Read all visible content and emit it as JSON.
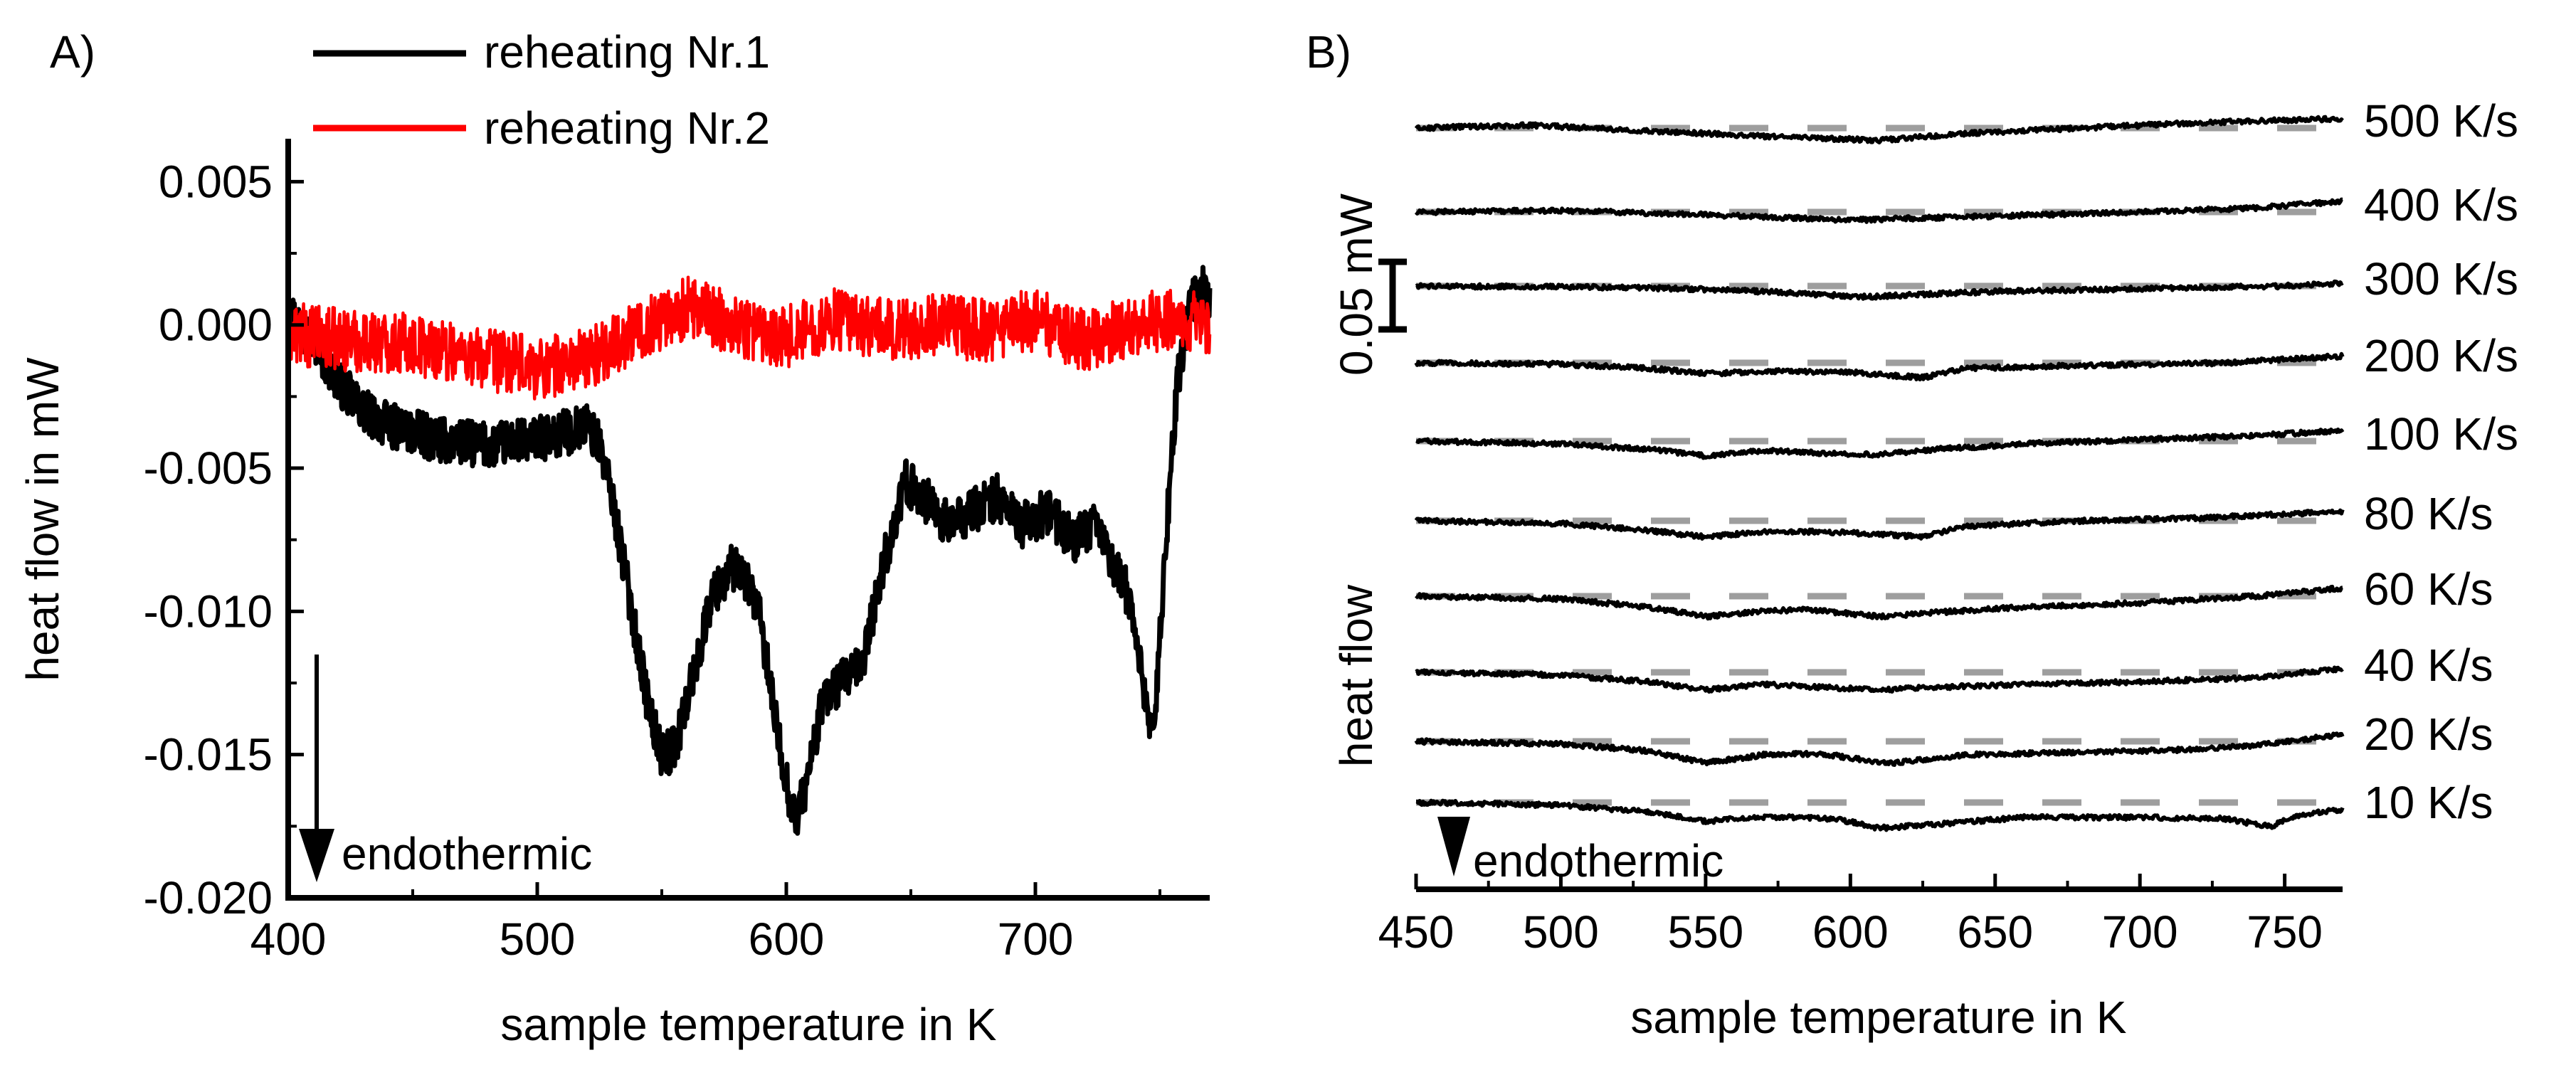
{
  "chart_data": [
    {
      "panel_label": "A)",
      "type": "line",
      "xlabel": "sample temperature in K",
      "ylabel": "heat flow in mW",
      "xlim": [
        400,
        770
      ],
      "ylim": [
        -0.02,
        0.0065
      ],
      "x_ticks": [
        400,
        500,
        600,
        700
      ],
      "y_ticks": [
        0.005,
        0.0,
        -0.005,
        -0.01,
        -0.015,
        -0.02
      ],
      "y_tick_labels": [
        "0.005",
        "0.000",
        "-0.005",
        "-0.010",
        "-0.015",
        "-0.020"
      ],
      "annotation": "endothermic",
      "series": [
        {
          "name": "reheating Nr.1",
          "color": "#000000",
          "noise": 0.0008,
          "points": [
            [
              400,
              0.0005
            ],
            [
              405,
              0.0
            ],
            [
              410,
              -0.0005
            ],
            [
              420,
              -0.002
            ],
            [
              430,
              -0.003
            ],
            [
              440,
              -0.0035
            ],
            [
              460,
              -0.004
            ],
            [
              480,
              -0.0042
            ],
            [
              500,
              -0.004
            ],
            [
              510,
              -0.0038
            ],
            [
              520,
              -0.0035
            ],
            [
              525,
              -0.0042
            ],
            [
              530,
              -0.006
            ],
            [
              535,
              -0.0085
            ],
            [
              540,
              -0.011
            ],
            [
              545,
              -0.0135
            ],
            [
              550,
              -0.015
            ],
            [
              555,
              -0.0148
            ],
            [
              562,
              -0.0125
            ],
            [
              570,
              -0.0095
            ],
            [
              578,
              -0.0085
            ],
            [
              585,
              -0.009
            ],
            [
              590,
              -0.0105
            ],
            [
              595,
              -0.0135
            ],
            [
              600,
              -0.016
            ],
            [
              604,
              -0.0173
            ],
            [
              608,
              -0.016
            ],
            [
              615,
              -0.013
            ],
            [
              622,
              -0.0125
            ],
            [
              630,
              -0.012
            ],
            [
              640,
              -0.008
            ],
            [
              648,
              -0.0055
            ],
            [
              655,
              -0.006
            ],
            [
              665,
              -0.007
            ],
            [
              675,
              -0.0065
            ],
            [
              685,
              -0.006
            ],
            [
              695,
              -0.007
            ],
            [
              705,
              -0.0065
            ],
            [
              715,
              -0.0075
            ],
            [
              725,
              -0.007
            ],
            [
              732,
              -0.0085
            ],
            [
              738,
              -0.0095
            ],
            [
              745,
              -0.0135
            ],
            [
              748,
              -0.014
            ],
            [
              752,
              -0.008
            ],
            [
              757,
              -0.002
            ],
            [
              762,
              0.0005
            ],
            [
              766,
              0.0015
            ],
            [
              770,
              0.001
            ]
          ]
        },
        {
          "name": "reheating Nr.2",
          "color": "#ff0000",
          "noise": 0.0011,
          "points": [
            [
              400,
              -0.0003
            ],
            [
              420,
              -0.0005
            ],
            [
              440,
              -0.0006
            ],
            [
              460,
              -0.0008
            ],
            [
              480,
              -0.0012
            ],
            [
              500,
              -0.0015
            ],
            [
              520,
              -0.0012
            ],
            [
              540,
              -0.0002
            ],
            [
              560,
              0.0006
            ],
            [
              580,
              0.0
            ],
            [
              600,
              -0.0004
            ],
            [
              620,
              0.0002
            ],
            [
              640,
              -0.0002
            ],
            [
              660,
              0.0
            ],
            [
              680,
              -0.0002
            ],
            [
              700,
              0.0002
            ],
            [
              720,
              -0.0006
            ],
            [
              740,
              0.0
            ],
            [
              760,
              0.0003
            ],
            [
              770,
              -0.0003
            ]
          ]
        }
      ]
    },
    {
      "panel_label": "B)",
      "type": "line",
      "xlabel": "sample temperature in K",
      "ylabel": "heat flow",
      "xlim": [
        450,
        770
      ],
      "x_ticks": [
        450,
        500,
        550,
        600,
        650,
        700,
        750
      ],
      "scale_bar_label": "0.05 mW",
      "scale_bar_mW": 0.05,
      "annotation": "endothermic",
      "baseline_style": "dashed grey",
      "series": [
        {
          "name": "500 K/s",
          "color": "#000000",
          "points": [
            [
              450,
              0
            ],
            [
              490,
              0.002
            ],
            [
              530,
              -0.002
            ],
            [
              580,
              -0.007
            ],
            [
              610,
              -0.009
            ],
            [
              640,
              -0.004
            ],
            [
              680,
              0.0
            ],
            [
              720,
              0.004
            ],
            [
              770,
              0.007
            ]
          ]
        },
        {
          "name": "400 K/s",
          "color": "#000000",
          "points": [
            [
              450,
              0
            ],
            [
              500,
              0.001
            ],
            [
              550,
              -0.002
            ],
            [
              600,
              -0.006
            ],
            [
              650,
              -0.003
            ],
            [
              700,
              0.0
            ],
            [
              740,
              0.003
            ],
            [
              770,
              0.008
            ]
          ]
        },
        {
          "name": "300 K/s",
          "color": "#000000",
          "points": [
            [
              450,
              0
            ],
            [
              520,
              -0.001
            ],
            [
              560,
              -0.003
            ],
            [
              605,
              -0.008
            ],
            [
              650,
              -0.004
            ],
            [
              700,
              -0.002
            ],
            [
              750,
              0.0
            ],
            [
              770,
              0.002
            ]
          ]
        },
        {
          "name": "200 K/s",
          "color": "#000000",
          "points": [
            [
              450,
              0
            ],
            [
              500,
              -0.001
            ],
            [
              530,
              -0.004
            ],
            [
              550,
              -0.008
            ],
            [
              575,
              -0.006
            ],
            [
              600,
              -0.007
            ],
            [
              625,
              -0.011
            ],
            [
              640,
              -0.004
            ],
            [
              680,
              -0.002
            ],
            [
              730,
              0.0
            ],
            [
              770,
              0.005
            ]
          ]
        },
        {
          "name": "100 K/s",
          "color": "#000000",
          "points": [
            [
              450,
              0
            ],
            [
              500,
              -0.002
            ],
            [
              530,
              -0.006
            ],
            [
              550,
              -0.011
            ],
            [
              570,
              -0.007
            ],
            [
              590,
              -0.009
            ],
            [
              610,
              -0.01
            ],
            [
              630,
              -0.006
            ],
            [
              660,
              -0.002
            ],
            [
              700,
              0.001
            ],
            [
              740,
              0.004
            ],
            [
              770,
              0.008
            ]
          ]
        },
        {
          "name": "80 K/s",
          "color": "#000000",
          "points": [
            [
              450,
              0
            ],
            [
              500,
              -0.002
            ],
            [
              530,
              -0.007
            ],
            [
              550,
              -0.012
            ],
            [
              570,
              -0.008
            ],
            [
              590,
              -0.008
            ],
            [
              610,
              -0.01
            ],
            [
              625,
              -0.012
            ],
            [
              640,
              -0.004
            ],
            [
              680,
              0.0
            ],
            [
              720,
              0.002
            ],
            [
              770,
              0.007
            ]
          ]
        },
        {
          "name": "60 K/s",
          "color": "#000000",
          "points": [
            [
              450,
              0
            ],
            [
              500,
              -0.002
            ],
            [
              530,
              -0.008
            ],
            [
              550,
              -0.015
            ],
            [
              570,
              -0.011
            ],
            [
              585,
              -0.01
            ],
            [
              600,
              -0.013
            ],
            [
              610,
              -0.015
            ],
            [
              630,
              -0.012
            ],
            [
              660,
              -0.008
            ],
            [
              700,
              -0.005
            ],
            [
              740,
              0.0
            ],
            [
              770,
              0.006
            ]
          ]
        },
        {
          "name": "40 K/s",
          "color": "#000000",
          "points": [
            [
              450,
              0
            ],
            [
              500,
              -0.002
            ],
            [
              530,
              -0.007
            ],
            [
              550,
              -0.013
            ],
            [
              570,
              -0.009
            ],
            [
              590,
              -0.011
            ],
            [
              610,
              -0.013
            ],
            [
              630,
              -0.011
            ],
            [
              660,
              -0.009
            ],
            [
              700,
              -0.007
            ],
            [
              740,
              -0.004
            ],
            [
              770,
              0.003
            ]
          ]
        },
        {
          "name": "20 K/s",
          "color": "#000000",
          "points": [
            [
              450,
              0
            ],
            [
              500,
              -0.002
            ],
            [
              530,
              -0.007
            ],
            [
              550,
              -0.016
            ],
            [
              570,
              -0.01
            ],
            [
              590,
              -0.009
            ],
            [
              605,
              -0.014
            ],
            [
              615,
              -0.016
            ],
            [
              640,
              -0.01
            ],
            [
              680,
              -0.008
            ],
            [
              720,
              -0.006
            ],
            [
              740,
              -0.003
            ],
            [
              770,
              0.005
            ]
          ]
        },
        {
          "name": "10 K/s",
          "color": "#000000",
          "points": [
            [
              450,
              0
            ],
            [
              500,
              -0.002
            ],
            [
              530,
              -0.007
            ],
            [
              550,
              -0.014
            ],
            [
              565,
              -0.011
            ],
            [
              580,
              -0.011
            ],
            [
              595,
              -0.012
            ],
            [
              610,
              -0.019
            ],
            [
              630,
              -0.016
            ],
            [
              660,
              -0.011
            ],
            [
              700,
              -0.011
            ],
            [
              730,
              -0.012
            ],
            [
              745,
              -0.018
            ],
            [
              755,
              -0.009
            ],
            [
              770,
              -0.005
            ]
          ]
        }
      ]
    }
  ]
}
